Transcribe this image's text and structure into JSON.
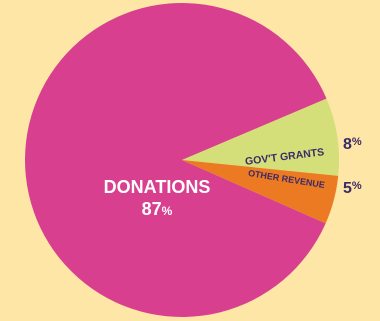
{
  "chart_data": {
    "type": "pie",
    "slices": [
      {
        "label": "DONATIONS",
        "value": 87,
        "percent_text": "87%",
        "color": "#d93f8f"
      },
      {
        "label": "GOV'T GRANTS",
        "value": 8,
        "percent_text": "8%",
        "color": "#d4df7a"
      },
      {
        "label": "OTHER REVENUE",
        "value": 5,
        "percent_text": "5%",
        "color": "#ec7a22"
      }
    ],
    "start_angle_deg": 0,
    "label_color": "#3b2a66"
  }
}
